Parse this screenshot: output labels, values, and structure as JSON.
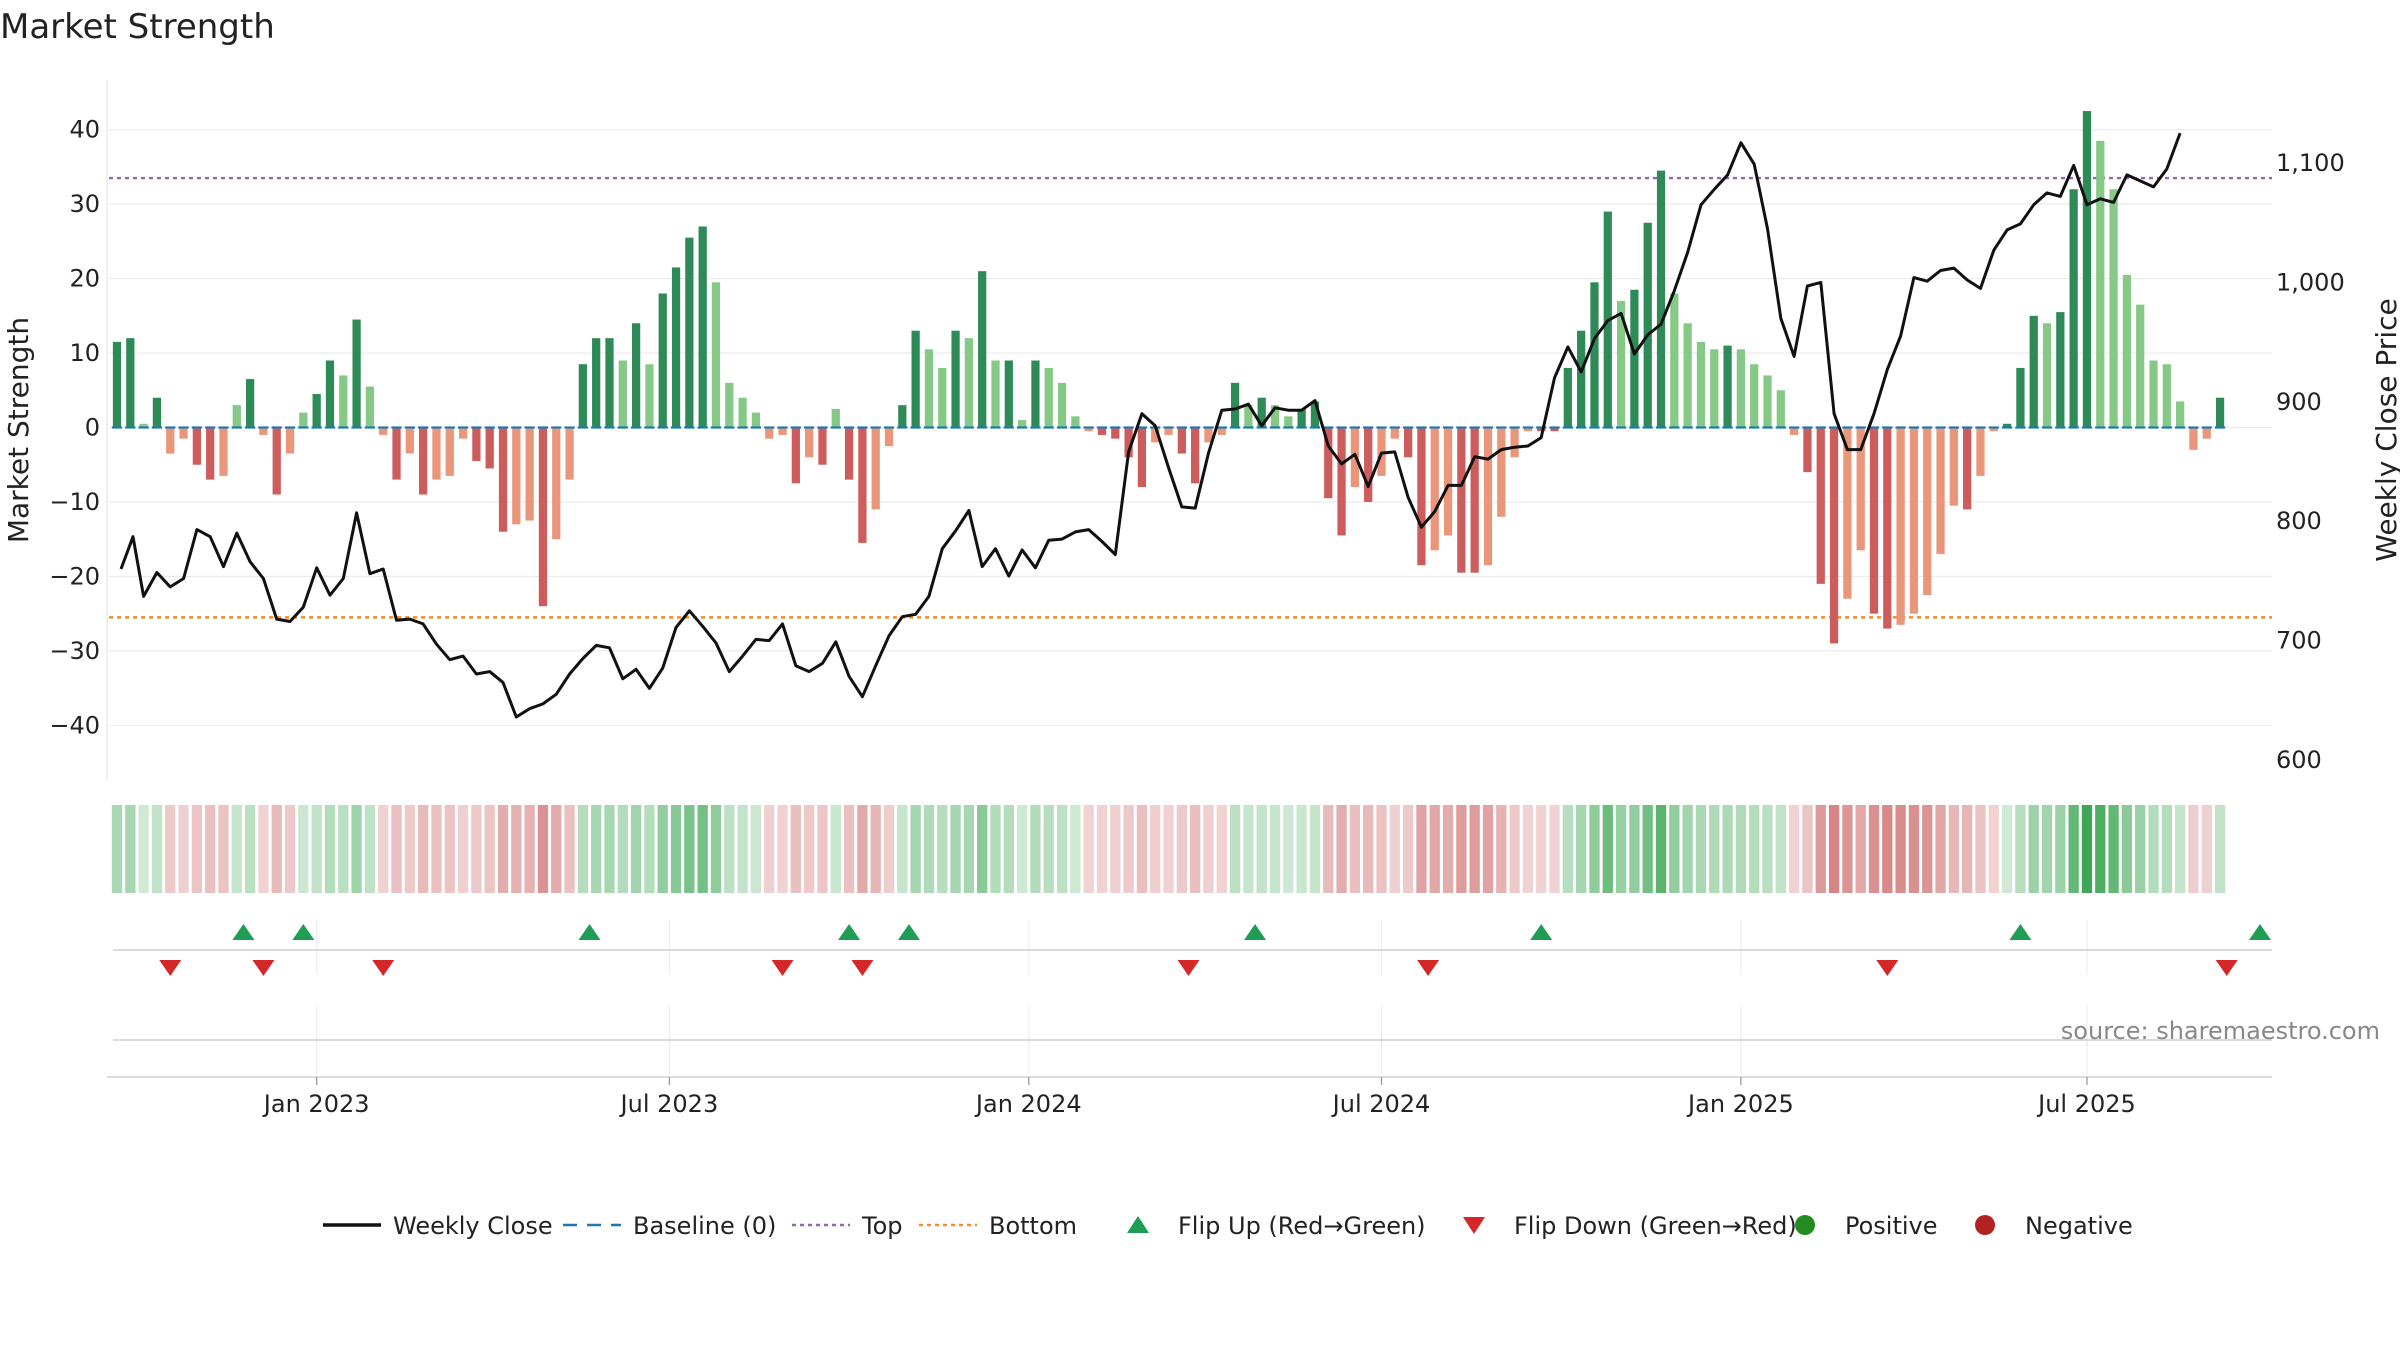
{
  "chart_data": {
    "type": "bar",
    "title": "Market Strength",
    "ylabel": "Market Strength",
    "y2label": "Weekly Close Price",
    "ylim": [
      -46,
      46
    ],
    "y2lim": [
      585,
      1150
    ],
    "yticks": [
      -40,
      -30,
      -20,
      -10,
      0,
      10,
      20,
      30,
      40
    ],
    "yticklabels": [
      "−40",
      "−30",
      "−20",
      "−10",
      "0",
      "10",
      "20",
      "30",
      "40"
    ],
    "y2ticks": [
      600,
      700,
      800,
      900,
      1000,
      1100
    ],
    "y2ticklabels": [
      "600",
      "700",
      "800",
      "900",
      "1,000",
      "1,100"
    ],
    "top_line": 33.5,
    "bottom_line": -25.5,
    "grid": true,
    "legend_position": "bottom",
    "x_range_weeks": [
      0,
      161
    ],
    "date_ticks": [
      {
        "label": "Jan 2023",
        "week": 15
      },
      {
        "label": "Jul 2023",
        "week": 41.5
      },
      {
        "label": "Jan 2024",
        "week": 68.5
      },
      {
        "label": "Jul 2024",
        "week": 95
      },
      {
        "label": "Jan 2025",
        "week": 122
      },
      {
        "label": "Jul 2025",
        "week": 148
      }
    ],
    "strength": [
      11.5,
      12,
      0.5,
      4,
      -3.5,
      -1.5,
      -5,
      -7,
      -6.5,
      3,
      6.5,
      -1,
      -9,
      -3.5,
      2,
      4.5,
      9,
      7,
      14.5,
      5.5,
      -1,
      -7,
      -3.5,
      -9,
      -7,
      -6.5,
      -1.5,
      -4.5,
      -5.5,
      -14,
      -13,
      -12.5,
      -24,
      -15,
      -7,
      8.5,
      12,
      12,
      9,
      14,
      8.5,
      18,
      21.5,
      25.5,
      27,
      19.5,
      6,
      4,
      2,
      -1.5,
      -1,
      -7.5,
      -4,
      -5,
      2.5,
      -7,
      -15.5,
      -11,
      -2.5,
      3,
      13,
      10.5,
      8,
      13,
      12,
      21,
      9,
      9,
      1,
      9,
      8,
      6,
      1.5,
      -0.5,
      -1,
      -1.5,
      -4,
      -8,
      -2,
      -1,
      -3.5,
      -7.5,
      -2,
      -1,
      6,
      3,
      4,
      3,
      1.5,
      2.5,
      3.5,
      -9.5,
      -14.5,
      -8,
      -10,
      -6.5,
      -1.5,
      -4,
      -18.5,
      -16.5,
      -14.5,
      -19.5,
      -19.5,
      -18.5,
      -12,
      -4,
      -0.5,
      -0.5,
      -0.5,
      8,
      13,
      19.5,
      29,
      17,
      18.5,
      27.5,
      34.5,
      18,
      14,
      11.5,
      10.5,
      11,
      10.5,
      8.5,
      7,
      5,
      -1,
      -6,
      -21,
      -29,
      -23,
      -16.5,
      -25,
      -27,
      -26.5,
      -25,
      -22.5,
      -17,
      -10.5,
      -11,
      -6.5,
      -0.5,
      0.5,
      8,
      15,
      14,
      15.5,
      32,
      42.5,
      38.5,
      32,
      20.5,
      16.5,
      9,
      8.5,
      3.5,
      -3,
      -1.5,
      4
    ],
    "strength_note": "weekly values from first bar to last bar",
    "close_weeks": [
      0.3,
      1.2,
      2,
      3,
      4,
      5,
      6,
      7,
      8,
      9,
      10,
      11,
      12,
      13,
      14,
      15,
      16,
      17,
      18,
      19,
      20,
      21,
      22,
      23,
      24,
      25,
      26,
      27,
      28,
      29,
      30,
      31,
      32,
      33,
      34,
      35,
      36,
      37,
      38,
      39,
      40,
      41,
      42,
      43,
      44,
      45,
      46,
      47,
      48,
      49,
      50,
      51,
      52,
      53,
      54,
      55,
      56,
      57,
      58,
      59,
      60,
      61,
      62,
      63,
      64,
      65,
      66,
      67,
      68,
      69,
      70,
      71,
      72,
      73,
      74,
      75,
      76,
      77,
      78,
      79,
      80,
      81,
      82,
      83,
      84,
      85,
      86,
      87,
      88,
      89,
      90,
      91,
      92,
      93,
      94,
      95,
      96,
      97,
      98,
      99,
      100,
      101,
      102,
      103,
      104,
      105,
      106,
      107,
      108,
      109,
      110,
      111,
      112,
      113,
      114,
      115,
      116,
      117,
      118,
      119,
      120,
      121,
      122,
      123,
      124,
      125,
      126,
      127,
      128,
      129,
      130,
      131,
      132,
      133,
      134,
      135,
      136,
      137,
      138,
      139,
      140,
      141,
      142,
      143,
      144,
      145,
      146,
      147,
      148,
      149,
      150,
      151,
      152,
      153,
      154,
      155,
      156,
      157,
      158,
      159,
      160,
      161
    ],
    "close": [
      760,
      787,
      737,
      757,
      745,
      752,
      793,
      787,
      762,
      790,
      766,
      752,
      718,
      716,
      728,
      761,
      738,
      752,
      807,
      756,
      760,
      717,
      718,
      714,
      697,
      684,
      687,
      672,
      674,
      665,
      636,
      643,
      647,
      655,
      672,
      685,
      696,
      694,
      668,
      676,
      660,
      677,
      711,
      725,
      712,
      698,
      674,
      687,
      701,
      700,
      714,
      679,
      674,
      681,
      699,
      670,
      653,
      679,
      704,
      720,
      722,
      737,
      777,
      792,
      809,
      762,
      777,
      754,
      776,
      761,
      784,
      785,
      791,
      793,
      783,
      772,
      858,
      890,
      880,
      845,
      812,
      811,
      857,
      893,
      894,
      898,
      880,
      895,
      893,
      893,
      901,
      863,
      848,
      856,
      829,
      857,
      858,
      820,
      795,
      808,
      830,
      830,
      854,
      852,
      860,
      862,
      863,
      870,
      920,
      946,
      925,
      953,
      968,
      974,
      940,
      956,
      965,
      993,
      1025,
      1065,
      1078,
      1090,
      1117,
      1099,
      1045,
      970,
      938,
      997,
      1000,
      890,
      860,
      860,
      890,
      927,
      955,
      1004,
      1001,
      1010,
      1012,
      1002,
      995,
      1027,
      1044,
      1049,
      1065,
      1075,
      1072,
      1098,
      1065,
      1070,
      1067,
      1090,
      1085,
      1080,
      1095,
      1125
    ],
    "series": [
      {
        "name": "Weekly Close",
        "color": "#111111"
      },
      {
        "name": "Baseline (0)",
        "color": "#1f77b4"
      },
      {
        "name": "Top",
        "color": "#9467bd"
      },
      {
        "name": "Bottom",
        "color": "#f28e2b"
      },
      {
        "name": "Flip Up (Red→Green)",
        "color": "#1f9d55"
      },
      {
        "name": "Flip Down (Green→Red)",
        "color": "#d62728"
      },
      {
        "name": "Positive",
        "color": "#228b22"
      },
      {
        "name": "Negative",
        "color": "#b22222"
      }
    ],
    "flip_up_weeks": [
      9.5,
      14,
      35.5,
      55,
      59.5,
      85.5,
      107,
      143,
      161
    ],
    "flip_down_weeks": [
      4,
      11,
      20,
      50,
      56,
      80.5,
      98.5,
      133,
      158.5
    ],
    "colors": {
      "pos_strong": "#2e8b57",
      "pos_weak": "#86c986",
      "neg_strong": "#cd5c5c",
      "neg_weak": "#e9967a",
      "top_line": "#9467bd",
      "bottom_line": "#f28e2b",
      "baseline": "#1f77b4",
      "close": "#111111"
    },
    "source": "source: sharemaestro.com"
  }
}
